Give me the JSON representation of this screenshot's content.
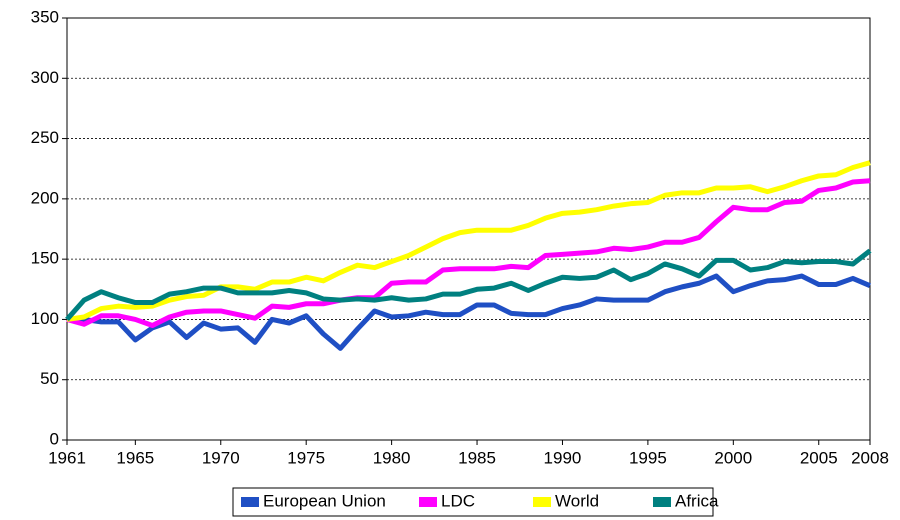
{
  "chart_data": {
    "type": "line",
    "x": [
      1961,
      1962,
      1963,
      1964,
      1965,
      1966,
      1967,
      1968,
      1969,
      1970,
      1971,
      1972,
      1973,
      1974,
      1975,
      1976,
      1977,
      1978,
      1979,
      1980,
      1981,
      1982,
      1983,
      1984,
      1985,
      1986,
      1987,
      1988,
      1989,
      1990,
      1991,
      1992,
      1993,
      1994,
      1995,
      1996,
      1997,
      1998,
      1999,
      2000,
      2001,
      2002,
      2003,
      2004,
      2005,
      2006,
      2007,
      2008
    ],
    "series": [
      {
        "name": "European Union",
        "color": "#1f4fc4",
        "values": [
          100,
          100,
          98,
          98,
          83,
          93,
          98,
          85,
          97,
          92,
          93,
          81,
          100,
          97,
          103,
          88,
          76,
          92,
          107,
          102,
          103,
          106,
          104,
          104,
          112,
          112,
          105,
          104,
          104,
          109,
          112,
          117,
          116,
          116,
          116,
          123,
          127,
          130,
          136,
          123,
          128,
          132,
          133,
          136,
          129,
          129,
          134,
          128
        ]
      },
      {
        "name": "LDC",
        "color": "#ff00ff",
        "values": [
          100,
          96,
          103,
          103,
          100,
          95,
          102,
          106,
          107,
          107,
          104,
          101,
          111,
          110,
          113,
          113,
          116,
          118,
          118,
          130,
          131,
          131,
          141,
          142,
          142,
          142,
          144,
          143,
          153,
          154,
          155,
          156,
          159,
          158,
          160,
          164,
          164,
          168,
          181,
          193,
          191,
          191,
          197,
          198,
          207,
          209,
          214,
          215
        ]
      },
      {
        "name": "World",
        "color": "#ffff00",
        "values": [
          100,
          102,
          109,
          111,
          110,
          111,
          116,
          119,
          120,
          127,
          127,
          125,
          131,
          131,
          135,
          132,
          139,
          145,
          143,
          148,
          153,
          160,
          167,
          172,
          174,
          174,
          174,
          178,
          184,
          188,
          189,
          191,
          194,
          196,
          197,
          203,
          205,
          205,
          209,
          209,
          210,
          206,
          210,
          215,
          219,
          220,
          226,
          230
        ]
      },
      {
        "name": "Africa",
        "color": "#008080",
        "values": [
          100,
          116,
          123,
          118,
          114,
          114,
          121,
          123,
          126,
          126,
          122,
          122,
          122,
          124,
          122,
          117,
          116,
          117,
          116,
          118,
          116,
          117,
          121,
          121,
          125,
          126,
          130,
          124,
          130,
          135,
          134,
          135,
          141,
          133,
          138,
          146,
          142,
          136,
          149,
          149,
          141,
          143,
          148,
          147,
          148,
          148,
          146,
          157
        ]
      }
    ],
    "xlim": [
      1961,
      2008
    ],
    "xticks": [
      1961,
      1965,
      1970,
      1975,
      1980,
      1985,
      1990,
      1995,
      2000,
      2005,
      2008
    ],
    "ylim": [
      0,
      350
    ],
    "yticks": [
      0,
      50,
      100,
      150,
      200,
      250,
      300,
      350
    ],
    "grid": true,
    "legend": "bottom"
  }
}
